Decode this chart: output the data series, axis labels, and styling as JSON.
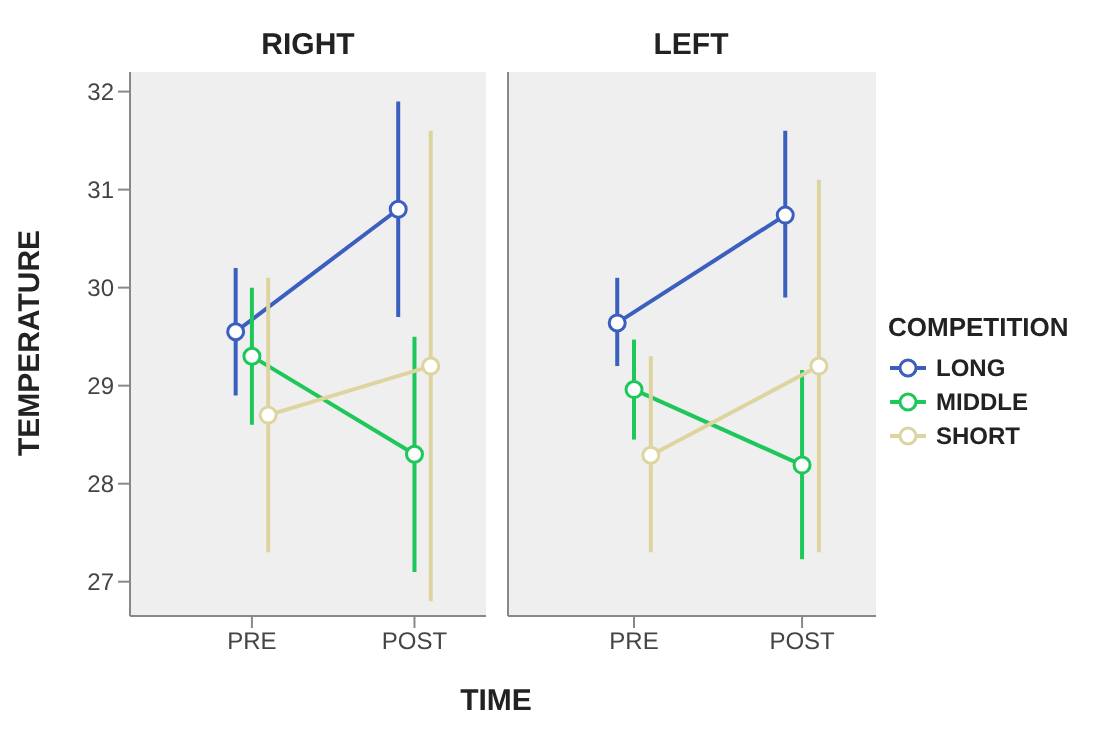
{
  "chart_data": [
    {
      "type": "line",
      "title": "RIGHT",
      "xlabel": "TIME",
      "ylabel": "TEMPERATURE",
      "categories": [
        "PRE",
        "POST"
      ],
      "ylim": [
        26.65,
        32.2
      ],
      "yticks": [
        27,
        28,
        29,
        30,
        31,
        32
      ],
      "marker": "circle",
      "grid": false,
      "legend": "right",
      "legend_title": "COMPETITION",
      "series": [
        {
          "name": "LONG",
          "color": "#3a5fbf",
          "values": [
            29.55,
            30.8
          ],
          "errors": [
            [
              28.9,
              30.2
            ],
            [
              29.7,
              31.9
            ]
          ]
        },
        {
          "name": "MIDDLE",
          "color": "#1ec75a",
          "values": [
            29.3,
            28.3
          ],
          "errors": [
            [
              28.6,
              30.0
            ],
            [
              27.1,
              29.5
            ]
          ]
        },
        {
          "name": "SHORT",
          "color": "#ddd4a0",
          "values": [
            28.7,
            29.2
          ],
          "errors": [
            [
              27.3,
              30.1
            ],
            [
              26.8,
              31.6
            ]
          ]
        }
      ]
    },
    {
      "type": "line",
      "title": "LEFT",
      "categories": [
        "PRE",
        "POST"
      ],
      "ylim": [
        26.65,
        32.2
      ],
      "yticks": [
        27,
        28,
        29,
        30,
        31,
        32
      ],
      "tick_labels": "x",
      "marker": "circle",
      "grid": false,
      "series": [
        {
          "color": "#3a5fbf",
          "values": [
            29.64,
            30.74
          ],
          "errors": [
            [
              29.2,
              30.1
            ],
            [
              29.9,
              31.6
            ]
          ]
        },
        {
          "color": "#1ec75a",
          "values": [
            28.96,
            28.19
          ],
          "errors": [
            [
              28.45,
              29.47
            ],
            [
              27.23,
              29.16
            ]
          ]
        },
        {
          "color": "#ddd4a0",
          "values": [
            28.29,
            29.2
          ],
          "errors": [
            [
              27.3,
              29.3
            ],
            [
              27.3,
              31.1
            ]
          ]
        }
      ]
    }
  ]
}
